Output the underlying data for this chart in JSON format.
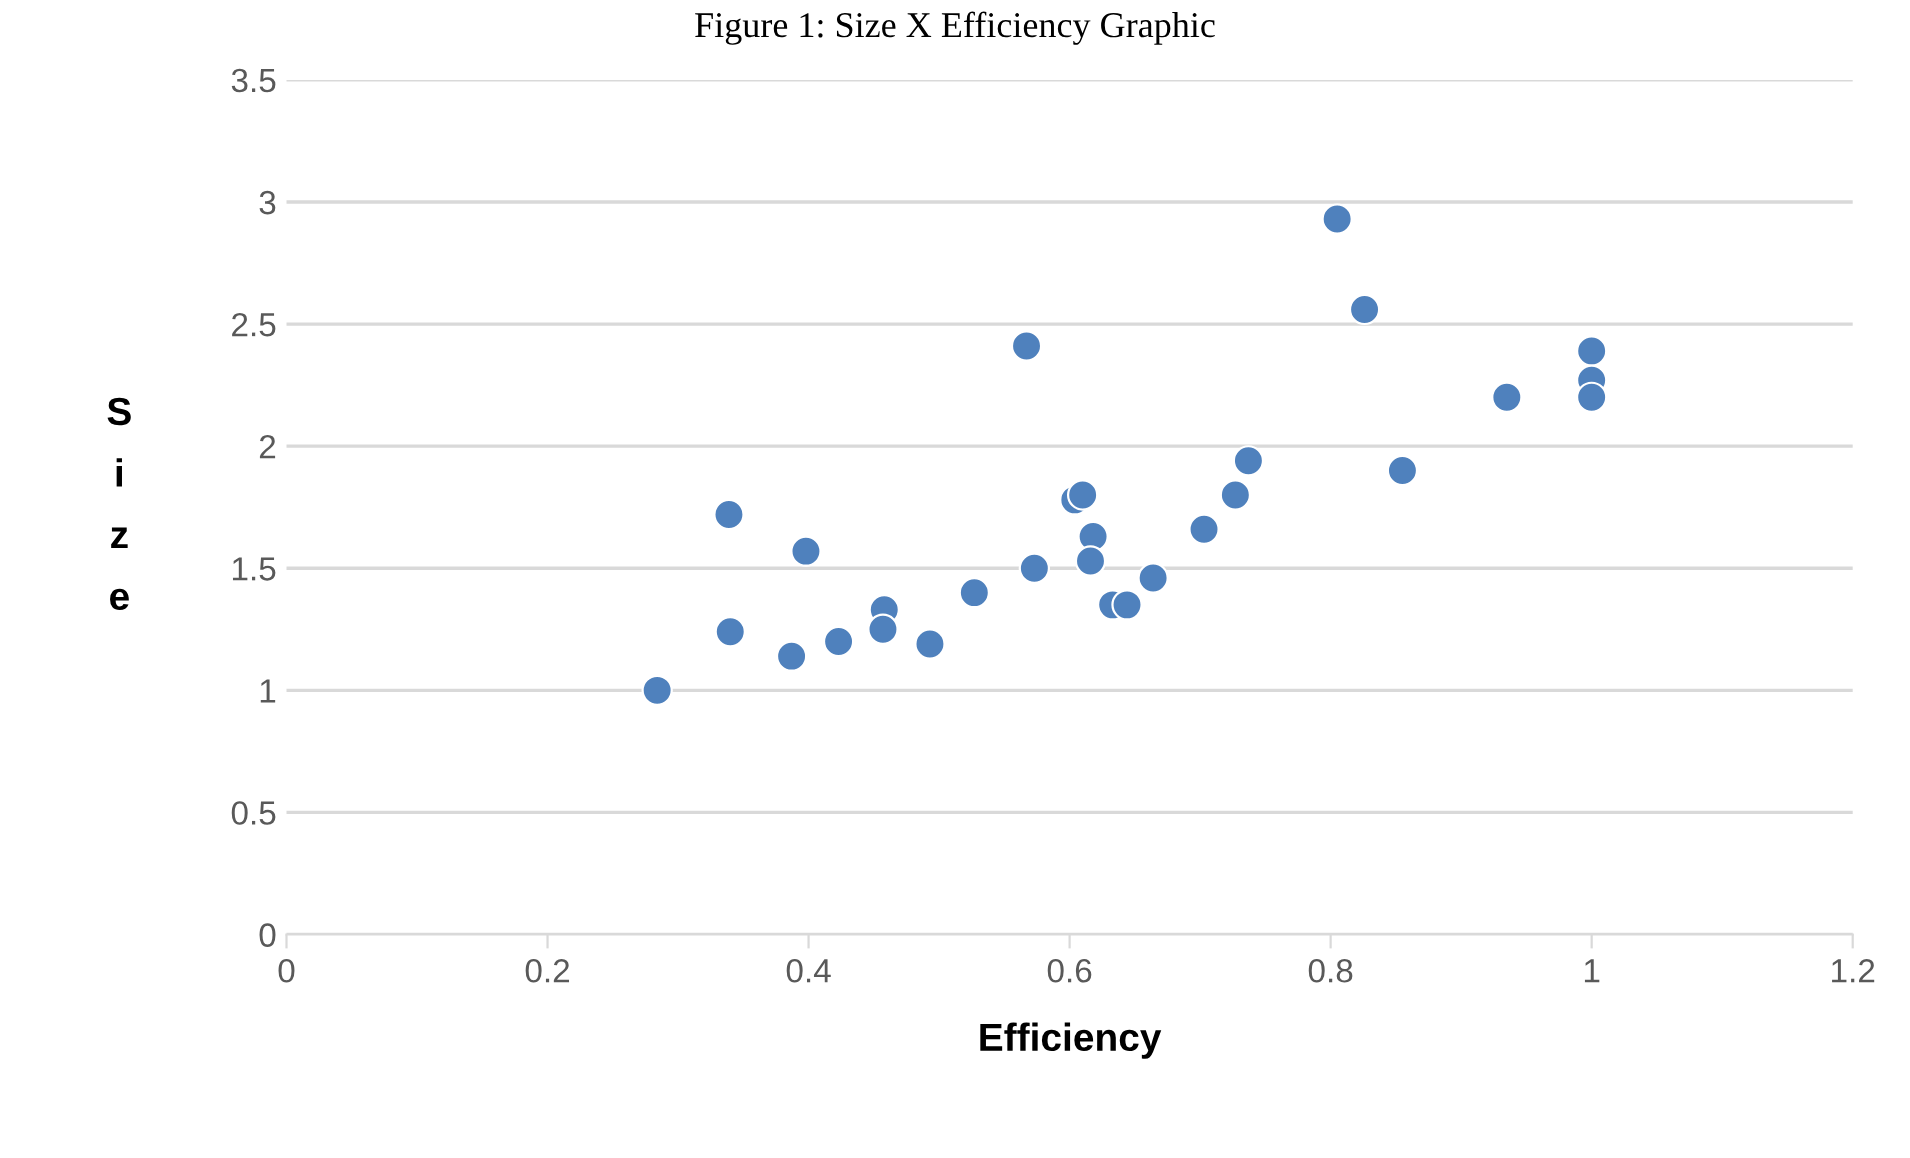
{
  "chart_data": {
    "type": "scatter",
    "title": "Figure 1: Size X Efficiency Graphic",
    "xlabel": "Efficiency",
    "ylabel": "Size",
    "x": [
      0.284,
      0.339,
      0.34,
      0.387,
      0.398,
      0.423,
      0.458,
      0.457,
      0.493,
      0.527,
      0.567,
      0.573,
      0.604,
      0.61,
      0.618,
      0.616,
      0.633,
      0.644,
      0.664,
      0.703,
      0.727,
      0.737,
      0.805,
      0.826,
      0.855,
      0.935,
      1.0,
      1.0,
      1.0
    ],
    "series": [
      {
        "color": "#4f81bd",
        "values": [
          1.0,
          1.72,
          1.24,
          1.14,
          1.57,
          1.2,
          1.33,
          1.25,
          1.19,
          1.4,
          2.41,
          1.5,
          1.78,
          1.8,
          1.63,
          1.53,
          1.35,
          1.35,
          1.46,
          1.66,
          1.8,
          1.94,
          2.93,
          2.56,
          1.9,
          2.2,
          2.39,
          2.27,
          2.2
        ]
      }
    ],
    "xlim": [
      0,
      1.2
    ],
    "xticks": [
      0,
      0.2,
      0.4,
      0.6,
      0.8,
      1,
      1.2
    ],
    "ylim": [
      0,
      3.5
    ],
    "yticks": [
      0,
      0.5,
      1,
      1.5,
      2,
      2.5,
      3,
      3.5
    ],
    "grid": "y",
    "marker": "circle",
    "legend": false
  }
}
